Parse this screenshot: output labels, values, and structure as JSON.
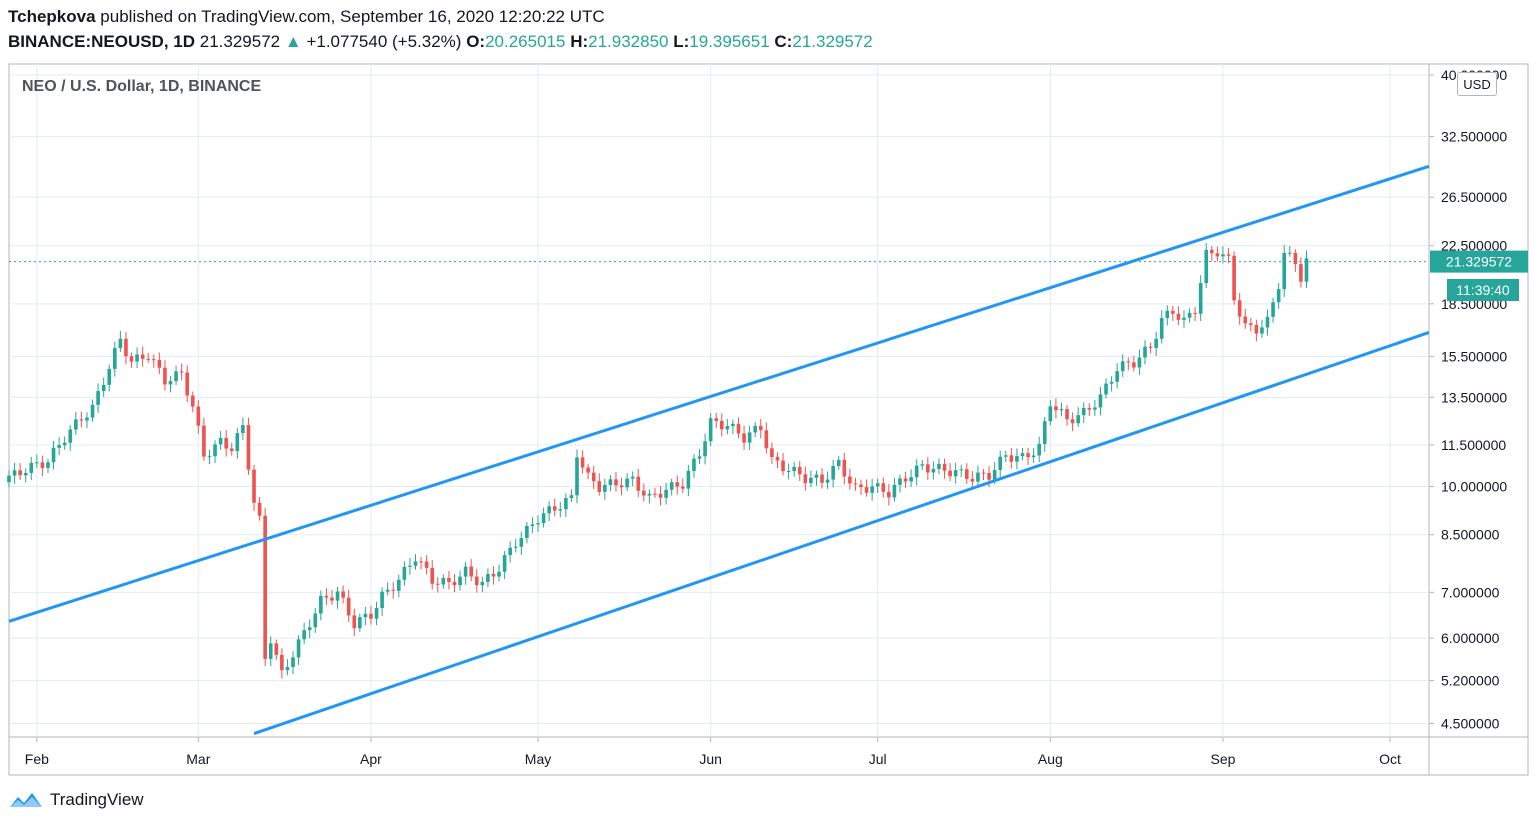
{
  "header": {
    "author": "Tchepkova",
    "published_text": "published on TradingView.com, September 16, 2020 12:20:22 UTC",
    "symbol": "BINANCE:NEOUSD, 1D",
    "last_price": "21.329572",
    "change": "+1.077540 (+5.32%)",
    "o_label": "O:",
    "o_value": "20.265015",
    "h_label": "H:",
    "h_value": "21.932850",
    "l_label": "L:",
    "l_value": "19.395651",
    "c_label": "C:",
    "c_value": "21.329572"
  },
  "footer": {
    "brand": "TradingView"
  },
  "colors": {
    "up": "#26a69a",
    "down": "#ef5350",
    "channel": "#2196f3",
    "grid": "#e1ecf2"
  },
  "chart_data": {
    "type": "candlestick",
    "title": "NEO / U.S. Dollar, 1D, BINANCE",
    "currency": "USD",
    "y_scale": "log",
    "ylim": [
      4.3,
      41.5
    ],
    "y_ticks": [
      4.5,
      5.2,
      6.0,
      7.0,
      8.5,
      10.0,
      11.5,
      13.5,
      15.5,
      18.5,
      22.5,
      26.5,
      32.5,
      40.0
    ],
    "y_tick_labels": [
      "4.500000",
      "5.200000",
      "6.000000",
      "7.000000",
      "8.500000",
      "10.000000",
      "11.500000",
      "13.500000",
      "15.500000",
      "18.500000",
      "22.500000",
      "26.500000",
      "32.500000",
      "40.000000"
    ],
    "x_ticks": [
      {
        "label": "Feb",
        "date": "2020-02-01"
      },
      {
        "label": "Mar",
        "date": "2020-03-01"
      },
      {
        "label": "Apr",
        "date": "2020-04-01"
      },
      {
        "label": "May",
        "date": "2020-05-01"
      },
      {
        "label": "Jun",
        "date": "2020-06-01"
      },
      {
        "label": "Jul",
        "date": "2020-07-01"
      },
      {
        "label": "Aug",
        "date": "2020-08-01"
      },
      {
        "label": "Sep",
        "date": "2020-09-01"
      },
      {
        "label": "Oct",
        "date": "2020-10-01"
      }
    ],
    "xlim": [
      "2020-01-27",
      "2020-10-08"
    ],
    "last_price_label": "21.329572",
    "countdown_label": "11:39:40",
    "channel_lines": [
      {
        "name": "upper",
        "start": {
          "date": "2020-01-27",
          "value": 6.35
        },
        "end": {
          "date": "2020-10-08",
          "value": 29.4
        }
      },
      {
        "name": "lower",
        "start": {
          "date": "2020-03-11",
          "value": 4.35
        },
        "end": {
          "date": "2020-10-08",
          "value": 16.8
        }
      }
    ],
    "closes": [
      {
        "date": "2020-01-27",
        "close": 10.3
      },
      {
        "date": "2020-01-30",
        "close": 10.6
      },
      {
        "date": "2020-02-03",
        "close": 10.9
      },
      {
        "date": "2020-02-06",
        "close": 11.8
      },
      {
        "date": "2020-02-09",
        "close": 12.6
      },
      {
        "date": "2020-02-11",
        "close": 13.0
      },
      {
        "date": "2020-02-13",
        "close": 14.3
      },
      {
        "date": "2020-02-16",
        "close": 16.4
      },
      {
        "date": "2020-02-18",
        "close": 15.2
      },
      {
        "date": "2020-02-21",
        "close": 15.6
      },
      {
        "date": "2020-02-24",
        "close": 14.3
      },
      {
        "date": "2020-02-27",
        "close": 14.6
      },
      {
        "date": "2020-02-29",
        "close": 13.1
      },
      {
        "date": "2020-03-02",
        "close": 11.1
      },
      {
        "date": "2020-03-05",
        "close": 11.6
      },
      {
        "date": "2020-03-07",
        "close": 11.4
      },
      {
        "date": "2020-03-09",
        "close": 12.2
      },
      {
        "date": "2020-03-11",
        "close": 9.5
      },
      {
        "date": "2020-03-12",
        "close": 8.9
      },
      {
        "date": "2020-03-13",
        "close": 5.6
      },
      {
        "date": "2020-03-14",
        "close": 6.0
      },
      {
        "date": "2020-03-16",
        "close": 5.3
      },
      {
        "date": "2020-03-18",
        "close": 5.7
      },
      {
        "date": "2020-03-20",
        "close": 6.1
      },
      {
        "date": "2020-03-23",
        "close": 6.8
      },
      {
        "date": "2020-03-26",
        "close": 7.0
      },
      {
        "date": "2020-03-29",
        "close": 6.3
      },
      {
        "date": "2020-04-01",
        "close": 6.5
      },
      {
        "date": "2020-04-03",
        "close": 6.9
      },
      {
        "date": "2020-04-06",
        "close": 7.3
      },
      {
        "date": "2020-04-09",
        "close": 7.9
      },
      {
        "date": "2020-04-12",
        "close": 7.3
      },
      {
        "date": "2020-04-15",
        "close": 7.2
      },
      {
        "date": "2020-04-18",
        "close": 7.5
      },
      {
        "date": "2020-04-21",
        "close": 7.2
      },
      {
        "date": "2020-04-24",
        "close": 7.6
      },
      {
        "date": "2020-04-27",
        "close": 8.3
      },
      {
        "date": "2020-04-29",
        "close": 8.6
      },
      {
        "date": "2020-05-01",
        "close": 9.0
      },
      {
        "date": "2020-05-04",
        "close": 9.3
      },
      {
        "date": "2020-05-07",
        "close": 9.6
      },
      {
        "date": "2020-05-08",
        "close": 11.2
      },
      {
        "date": "2020-05-10",
        "close": 10.3
      },
      {
        "date": "2020-05-12",
        "close": 10.0
      },
      {
        "date": "2020-05-15",
        "close": 10.1
      },
      {
        "date": "2020-05-18",
        "close": 10.2
      },
      {
        "date": "2020-05-21",
        "close": 9.6
      },
      {
        "date": "2020-05-24",
        "close": 9.9
      },
      {
        "date": "2020-05-27",
        "close": 10.1
      },
      {
        "date": "2020-05-30",
        "close": 11.2
      },
      {
        "date": "2020-06-01",
        "close": 12.4
      },
      {
        "date": "2020-06-04",
        "close": 12.3
      },
      {
        "date": "2020-06-07",
        "close": 11.8
      },
      {
        "date": "2020-06-10",
        "close": 12.2
      },
      {
        "date": "2020-06-12",
        "close": 10.9
      },
      {
        "date": "2020-06-15",
        "close": 10.6
      },
      {
        "date": "2020-06-18",
        "close": 10.3
      },
      {
        "date": "2020-06-21",
        "close": 10.2
      },
      {
        "date": "2020-06-24",
        "close": 10.8
      },
      {
        "date": "2020-06-27",
        "close": 9.9
      },
      {
        "date": "2020-06-30",
        "close": 10.0
      },
      {
        "date": "2020-07-03",
        "close": 9.8
      },
      {
        "date": "2020-07-06",
        "close": 10.3
      },
      {
        "date": "2020-07-09",
        "close": 10.7
      },
      {
        "date": "2020-07-12",
        "close": 10.6
      },
      {
        "date": "2020-07-15",
        "close": 10.5
      },
      {
        "date": "2020-07-18",
        "close": 10.3
      },
      {
        "date": "2020-07-21",
        "close": 10.4
      },
      {
        "date": "2020-07-24",
        "close": 11.1
      },
      {
        "date": "2020-07-27",
        "close": 11.0
      },
      {
        "date": "2020-07-30",
        "close": 11.4
      },
      {
        "date": "2020-08-01",
        "close": 13.3
      },
      {
        "date": "2020-08-04",
        "close": 12.5
      },
      {
        "date": "2020-08-07",
        "close": 12.8
      },
      {
        "date": "2020-08-10",
        "close": 13.5
      },
      {
        "date": "2020-08-13",
        "close": 14.9
      },
      {
        "date": "2020-08-16",
        "close": 15.2
      },
      {
        "date": "2020-08-19",
        "close": 16.0
      },
      {
        "date": "2020-08-21",
        "close": 17.5
      },
      {
        "date": "2020-08-23",
        "close": 18.1
      },
      {
        "date": "2020-08-25",
        "close": 17.4
      },
      {
        "date": "2020-08-27",
        "close": 18.2
      },
      {
        "date": "2020-08-29",
        "close": 21.8
      },
      {
        "date": "2020-08-31",
        "close": 22.1
      },
      {
        "date": "2020-09-02",
        "close": 21.4
      },
      {
        "date": "2020-09-03",
        "close": 18.9
      },
      {
        "date": "2020-09-05",
        "close": 17.1
      },
      {
        "date": "2020-09-07",
        "close": 17.0
      },
      {
        "date": "2020-09-09",
        "close": 17.4
      },
      {
        "date": "2020-09-11",
        "close": 19.8
      },
      {
        "date": "2020-09-12",
        "close": 21.9
      },
      {
        "date": "2020-09-14",
        "close": 21.3
      },
      {
        "date": "2020-09-15",
        "close": 20.25
      },
      {
        "date": "2020-09-16",
        "close": 21.33
      }
    ]
  }
}
